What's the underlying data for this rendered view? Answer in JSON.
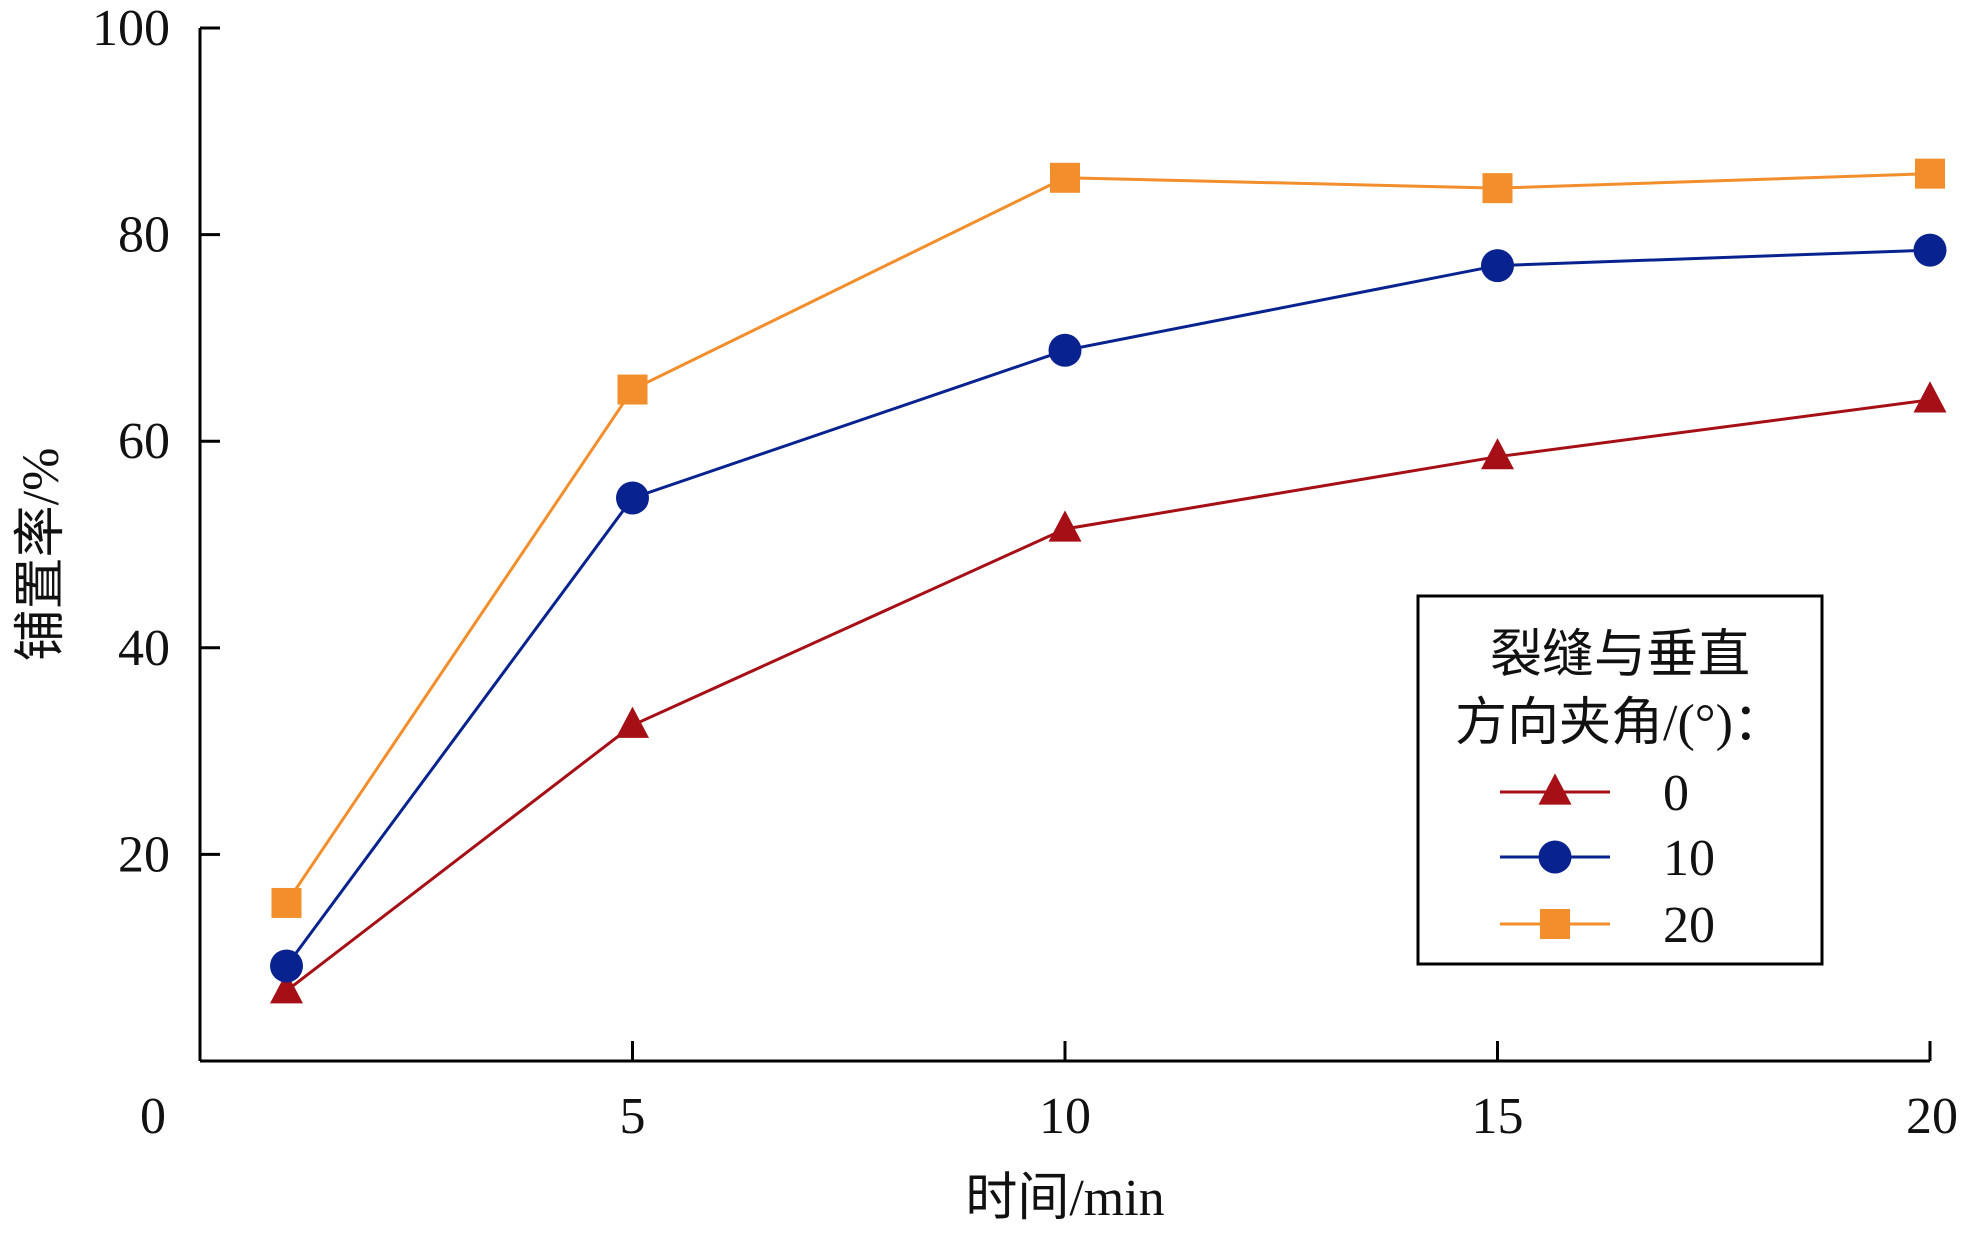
{
  "chart_data": {
    "type": "line",
    "xlabel": "时间/min",
    "ylabel": "铺置率/%",
    "xlim": [
      0,
      20
    ],
    "ylim": [
      0,
      100
    ],
    "x_ticks": [
      0,
      5,
      10,
      15,
      20
    ],
    "y_ticks": [
      20,
      40,
      60,
      80,
      100
    ],
    "x_tick_labels": [
      "0",
      "5",
      "10",
      "15",
      "20"
    ],
    "y_tick_labels": [
      "20",
      "40",
      "60",
      "80",
      "100"
    ],
    "grid": false,
    "legend": {
      "title_lines": [
        "裂缝与垂直",
        "方向夹角/(°)："
      ],
      "placement": "lower-right"
    },
    "series": [
      {
        "name": "0",
        "marker": "triangle",
        "color": "#A50F15",
        "x": [
          1,
          5,
          10,
          15,
          20
        ],
        "y": [
          6.8,
          32.5,
          51.5,
          58.5,
          64.0
        ]
      },
      {
        "name": "10",
        "marker": "circle",
        "color": "#08238F",
        "x": [
          1,
          5,
          10,
          15,
          20
        ],
        "y": [
          9.2,
          54.5,
          68.8,
          77.0,
          78.5
        ]
      },
      {
        "name": "20",
        "marker": "square",
        "color": "#F28E2B",
        "x": [
          1,
          5,
          10,
          15,
          20
        ],
        "y": [
          15.3,
          65.0,
          85.5,
          84.5,
          85.9
        ]
      }
    ]
  }
}
